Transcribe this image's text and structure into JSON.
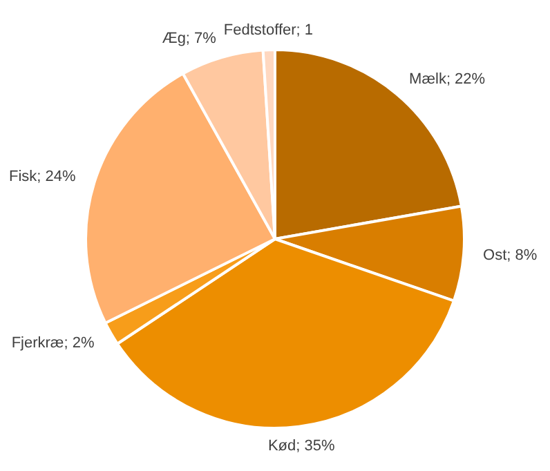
{
  "chart_data": {
    "type": "pie",
    "categories": [
      "Mælk",
      "Ost",
      "Kød",
      "Fjerkræ",
      "Fisk",
      "Æg",
      "Fedtstoffer"
    ],
    "values": [
      22,
      8,
      35,
      2,
      24,
      7,
      1
    ],
    "value_labels": [
      "22%",
      "8%",
      "35%",
      "2%",
      "24%",
      "7%",
      "1"
    ],
    "colors": [
      "#b86b00",
      "#d97e00",
      "#ed8e00",
      "#f79d1a",
      "#ffb06e",
      "#ffc8a0",
      "#ffd8c0"
    ],
    "legend": false
  }
}
